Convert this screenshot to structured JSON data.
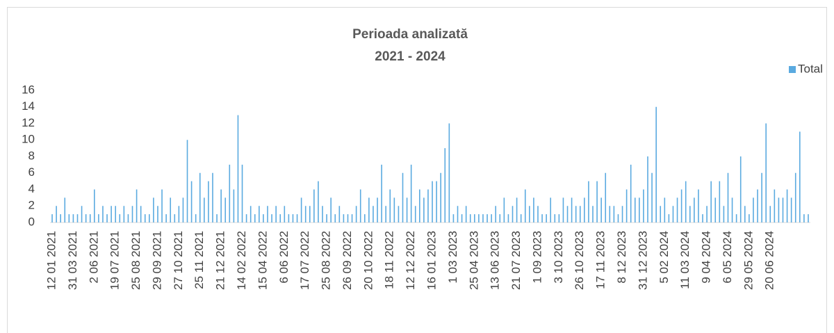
{
  "chart_data": {
    "type": "bar",
    "title": "Perioada analizată",
    "subtitle": "2021 - 2024",
    "legend": "top-right",
    "ylim": [
      0,
      16
    ],
    "yticks": [
      0,
      2,
      4,
      6,
      8,
      10,
      12,
      14,
      16
    ],
    "categories": [
      "12 01 2021",
      null,
      null,
      null,
      null,
      "31 03 2021",
      null,
      null,
      null,
      null,
      "2 06 2021",
      null,
      null,
      null,
      null,
      "19 07 2021",
      null,
      null,
      null,
      null,
      "25 08 2021",
      null,
      null,
      null,
      null,
      "29 09 2021",
      null,
      null,
      null,
      null,
      "27 10 2021",
      null,
      null,
      null,
      null,
      "25 11 2021",
      null,
      null,
      null,
      null,
      "21 12 2021",
      null,
      null,
      null,
      null,
      "14 02 2022",
      null,
      null,
      null,
      null,
      "15 04 2022",
      null,
      null,
      null,
      null,
      "6 06 2022",
      null,
      null,
      null,
      null,
      "17 07 2022",
      null,
      null,
      null,
      null,
      "25 08 2022",
      null,
      null,
      null,
      null,
      "26 09 2022",
      null,
      null,
      null,
      null,
      "20 10 2022",
      null,
      null,
      null,
      null,
      "18 11 2022",
      null,
      null,
      null,
      null,
      "12 12 2022",
      null,
      null,
      null,
      null,
      "16 01 2023",
      null,
      null,
      null,
      null,
      "1 03 2023",
      null,
      null,
      null,
      null,
      "25 04 2023",
      null,
      null,
      null,
      null,
      "13 06 2023",
      null,
      null,
      null,
      null,
      "21 07 2023",
      null,
      null,
      null,
      null,
      "1 09 2023",
      null,
      null,
      null,
      null,
      "3 10 2023",
      null,
      null,
      null,
      null,
      "26 10 2023",
      null,
      null,
      null,
      null,
      "17 11 2023",
      null,
      null,
      null,
      null,
      "8 12 2023",
      null,
      null,
      null,
      null,
      "31 12 2023",
      null,
      null,
      null,
      null,
      "5 02 2024",
      null,
      null,
      null,
      null,
      "11 03 2024",
      null,
      null,
      null,
      null,
      "9 04 2024",
      null,
      null,
      null,
      null,
      "6 05 2024",
      null,
      null,
      null,
      null,
      "29 05 2024",
      null,
      null,
      null,
      null,
      "20 06 2024",
      null,
      null,
      null,
      null,
      null,
      null,
      null,
      null,
      null
    ],
    "series": [
      {
        "name": "Total",
        "color": "#5aaae0",
        "values": [
          1,
          2,
          1,
          3,
          1,
          1,
          1,
          2,
          1,
          1,
          4,
          1,
          2,
          1,
          2,
          2,
          1,
          2,
          1,
          2,
          4,
          2,
          1,
          1,
          3,
          2,
          4,
          1,
          3,
          1,
          2,
          3,
          10,
          5,
          1,
          6,
          3,
          5,
          6,
          1,
          4,
          3,
          7,
          4,
          13,
          7,
          1,
          2,
          1,
          2,
          1,
          2,
          1,
          2,
          1,
          2,
          1,
          1,
          1,
          3,
          2,
          2,
          4,
          5,
          2,
          1,
          3,
          1,
          2,
          1,
          1,
          1,
          2,
          4,
          1,
          3,
          2,
          3,
          7,
          2,
          4,
          3,
          2,
          6,
          3,
          7,
          2,
          4,
          3,
          4,
          5,
          5,
          6,
          9,
          12,
          1,
          2,
          1,
          2,
          1,
          1,
          1,
          1,
          1,
          1,
          2,
          1,
          3,
          1,
          2,
          3,
          1,
          4,
          2,
          3,
          2,
          1,
          1,
          3,
          1,
          1,
          3,
          2,
          3,
          2,
          2,
          3,
          5,
          2,
          5,
          3,
          6,
          2,
          2,
          1,
          2,
          4,
          7,
          3,
          3,
          4,
          8,
          6,
          14,
          2,
          3,
          1,
          2,
          3,
          4,
          5,
          2,
          3,
          4,
          1,
          2,
          5,
          3,
          5,
          2,
          6,
          3,
          1,
          8,
          2,
          1,
          3,
          4,
          6,
          12,
          2,
          4,
          3,
          3,
          4,
          3,
          6,
          11,
          1,
          1
        ]
      }
    ]
  }
}
